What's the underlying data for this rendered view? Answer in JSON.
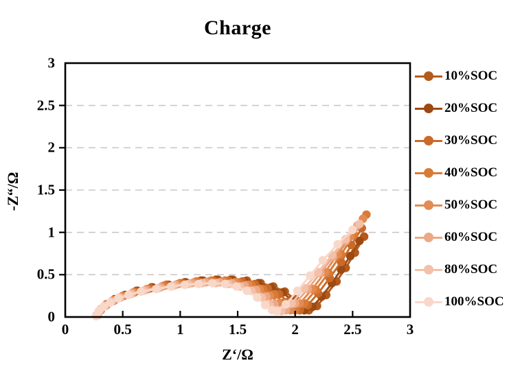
{
  "chart_data": {
    "type": "line",
    "title": "Charge",
    "xlabel": "Z‘/Ω",
    "ylabel": "-Z“/Ω",
    "xlim": [
      0,
      3
    ],
    "ylim": [
      0,
      3
    ],
    "xticks": [
      0,
      0.5,
      1,
      1.5,
      2,
      2.5,
      3
    ],
    "yticks": [
      0,
      0.5,
      1,
      1.5,
      2,
      2.5,
      3
    ],
    "xtick_labels": [
      "0",
      "0.5",
      "1",
      "1.5",
      "2",
      "2.5",
      "3"
    ],
    "ytick_labels": [
      "0",
      "0.5",
      "1",
      "1.5",
      "2",
      "2.5",
      "3"
    ],
    "grid": "horizontal-dashed",
    "grid_color": "#c9c9c9",
    "border_color": "#000000",
    "legend_position": "right",
    "series": [
      {
        "name": "10%SOC",
        "color": "#b45a1d",
        "points": [
          [
            0.28,
            0.02
          ],
          [
            0.31,
            0.09
          ],
          [
            0.36,
            0.15
          ],
          [
            0.43,
            0.21
          ],
          [
            0.52,
            0.26
          ],
          [
            0.63,
            0.31
          ],
          [
            0.76,
            0.35
          ],
          [
            0.9,
            0.38
          ],
          [
            1.05,
            0.41
          ],
          [
            1.2,
            0.43
          ],
          [
            1.33,
            0.44
          ],
          [
            1.46,
            0.44
          ],
          [
            1.58,
            0.43
          ],
          [
            1.7,
            0.4
          ],
          [
            1.81,
            0.36
          ],
          [
            1.91,
            0.3
          ],
          [
            2.0,
            0.21
          ],
          [
            2.07,
            0.12
          ],
          [
            2.12,
            0.08
          ],
          [
            2.19,
            0.13
          ],
          [
            2.27,
            0.26
          ],
          [
            2.36,
            0.42
          ],
          [
            2.44,
            0.58
          ],
          [
            2.52,
            0.76
          ],
          [
            2.6,
            0.95
          ]
        ]
      },
      {
        "name": "20%SOC",
        "color": "#9c4a12",
        "points": [
          [
            0.28,
            0.02
          ],
          [
            0.31,
            0.09
          ],
          [
            0.36,
            0.15
          ],
          [
            0.43,
            0.21
          ],
          [
            0.52,
            0.26
          ],
          [
            0.62,
            0.31
          ],
          [
            0.75,
            0.35
          ],
          [
            0.89,
            0.38
          ],
          [
            1.04,
            0.41
          ],
          [
            1.18,
            0.43
          ],
          [
            1.31,
            0.44
          ],
          [
            1.44,
            0.44
          ],
          [
            1.56,
            0.42
          ],
          [
            1.68,
            0.4
          ],
          [
            1.79,
            0.35
          ],
          [
            1.89,
            0.29
          ],
          [
            1.97,
            0.2
          ],
          [
            2.04,
            0.11
          ],
          [
            2.08,
            0.08
          ],
          [
            2.15,
            0.12
          ],
          [
            2.23,
            0.24
          ],
          [
            2.32,
            0.4
          ],
          [
            2.4,
            0.56
          ],
          [
            2.48,
            0.72
          ],
          [
            2.56,
            0.9
          ]
        ]
      },
      {
        "name": "30%SOC",
        "color": "#c96a2a",
        "points": [
          [
            0.28,
            0.02
          ],
          [
            0.31,
            0.09
          ],
          [
            0.36,
            0.15
          ],
          [
            0.43,
            0.2
          ],
          [
            0.51,
            0.25
          ],
          [
            0.61,
            0.3
          ],
          [
            0.74,
            0.34
          ],
          [
            0.88,
            0.38
          ],
          [
            1.02,
            0.4
          ],
          [
            1.16,
            0.42
          ],
          [
            1.29,
            0.43
          ],
          [
            1.42,
            0.43
          ],
          [
            1.54,
            0.42
          ],
          [
            1.65,
            0.39
          ],
          [
            1.76,
            0.34
          ],
          [
            1.86,
            0.27
          ],
          [
            1.94,
            0.18
          ],
          [
            2.0,
            0.1
          ],
          [
            2.04,
            0.08
          ],
          [
            2.11,
            0.14
          ],
          [
            2.2,
            0.28
          ],
          [
            2.3,
            0.46
          ],
          [
            2.4,
            0.65
          ],
          [
            2.49,
            0.85
          ],
          [
            2.58,
            1.05
          ]
        ]
      },
      {
        "name": "40%SOC",
        "color": "#d97a35",
        "points": [
          [
            0.28,
            0.02
          ],
          [
            0.31,
            0.08
          ],
          [
            0.36,
            0.14
          ],
          [
            0.42,
            0.2
          ],
          [
            0.5,
            0.25
          ],
          [
            0.6,
            0.29
          ],
          [
            0.72,
            0.33
          ],
          [
            0.86,
            0.37
          ],
          [
            1.0,
            0.4
          ],
          [
            1.14,
            0.42
          ],
          [
            1.27,
            0.43
          ],
          [
            1.39,
            0.43
          ],
          [
            1.51,
            0.41
          ],
          [
            1.62,
            0.38
          ],
          [
            1.72,
            0.33
          ],
          [
            1.82,
            0.26
          ],
          [
            1.9,
            0.17
          ],
          [
            1.96,
            0.1
          ],
          [
            2.0,
            0.08
          ],
          [
            2.08,
            0.16
          ],
          [
            2.18,
            0.32
          ],
          [
            2.29,
            0.52
          ],
          [
            2.4,
            0.74
          ],
          [
            2.51,
            0.97
          ],
          [
            2.62,
            1.21
          ]
        ]
      },
      {
        "name": "50%SOC",
        "color": "#e28b52",
        "points": [
          [
            0.28,
            0.02
          ],
          [
            0.31,
            0.08
          ],
          [
            0.35,
            0.14
          ],
          [
            0.42,
            0.19
          ],
          [
            0.49,
            0.24
          ],
          [
            0.59,
            0.29
          ],
          [
            0.71,
            0.33
          ],
          [
            0.84,
            0.36
          ],
          [
            0.98,
            0.39
          ],
          [
            1.12,
            0.41
          ],
          [
            1.25,
            0.42
          ],
          [
            1.37,
            0.42
          ],
          [
            1.48,
            0.41
          ],
          [
            1.59,
            0.38
          ],
          [
            1.69,
            0.33
          ],
          [
            1.78,
            0.25
          ],
          [
            1.86,
            0.16
          ],
          [
            1.92,
            0.09
          ],
          [
            1.96,
            0.08
          ],
          [
            2.04,
            0.16
          ],
          [
            2.15,
            0.33
          ],
          [
            2.26,
            0.53
          ],
          [
            2.37,
            0.74
          ],
          [
            2.48,
            0.95
          ],
          [
            2.59,
            1.16
          ]
        ]
      },
      {
        "name": "60%SOC",
        "color": "#eda886",
        "points": [
          [
            0.28,
            0.02
          ],
          [
            0.3,
            0.08
          ],
          [
            0.35,
            0.13
          ],
          [
            0.41,
            0.19
          ],
          [
            0.48,
            0.23
          ],
          [
            0.58,
            0.28
          ],
          [
            0.7,
            0.32
          ],
          [
            0.83,
            0.35
          ],
          [
            0.96,
            0.38
          ],
          [
            1.1,
            0.4
          ],
          [
            1.22,
            0.41
          ],
          [
            1.34,
            0.41
          ],
          [
            1.45,
            0.4
          ],
          [
            1.56,
            0.37
          ],
          [
            1.66,
            0.32
          ],
          [
            1.75,
            0.24
          ],
          [
            1.82,
            0.15
          ],
          [
            1.88,
            0.09
          ],
          [
            1.92,
            0.08
          ],
          [
            2.0,
            0.16
          ],
          [
            2.11,
            0.33
          ],
          [
            2.22,
            0.52
          ],
          [
            2.33,
            0.71
          ],
          [
            2.44,
            0.9
          ],
          [
            2.54,
            1.08
          ]
        ]
      },
      {
        "name": "80%SOC",
        "color": "#f3c0a8",
        "points": [
          [
            0.27,
            0.02
          ],
          [
            0.3,
            0.08
          ],
          [
            0.34,
            0.13
          ],
          [
            0.4,
            0.18
          ],
          [
            0.47,
            0.23
          ],
          [
            0.57,
            0.27
          ],
          [
            0.68,
            0.31
          ],
          [
            0.81,
            0.34
          ],
          [
            0.94,
            0.37
          ],
          [
            1.07,
            0.39
          ],
          [
            1.19,
            0.4
          ],
          [
            1.31,
            0.4
          ],
          [
            1.42,
            0.39
          ],
          [
            1.52,
            0.36
          ],
          [
            1.62,
            0.31
          ],
          [
            1.71,
            0.23
          ],
          [
            1.78,
            0.14
          ],
          [
            1.84,
            0.08
          ],
          [
            1.88,
            0.07
          ],
          [
            1.97,
            0.16
          ],
          [
            2.08,
            0.34
          ],
          [
            2.2,
            0.53
          ],
          [
            2.32,
            0.73
          ],
          [
            2.44,
            0.92
          ],
          [
            2.56,
            1.1
          ]
        ]
      },
      {
        "name": "100%SOC",
        "color": "#f9d8ca",
        "points": [
          [
            0.27,
            0.01
          ],
          [
            0.29,
            0.07
          ],
          [
            0.33,
            0.12
          ],
          [
            0.39,
            0.17
          ],
          [
            0.46,
            0.22
          ],
          [
            0.55,
            0.26
          ],
          [
            0.66,
            0.3
          ],
          [
            0.79,
            0.33
          ],
          [
            0.92,
            0.36
          ],
          [
            1.04,
            0.38
          ],
          [
            1.16,
            0.39
          ],
          [
            1.28,
            0.4
          ],
          [
            1.39,
            0.39
          ],
          [
            1.49,
            0.36
          ],
          [
            1.58,
            0.31
          ],
          [
            1.67,
            0.23
          ],
          [
            1.74,
            0.14
          ],
          [
            1.8,
            0.08
          ],
          [
            1.84,
            0.07
          ],
          [
            1.92,
            0.15
          ],
          [
            2.02,
            0.31
          ],
          [
            2.13,
            0.49
          ],
          [
            2.24,
            0.67
          ],
          [
            2.37,
            0.86
          ],
          [
            2.5,
            1.03
          ]
        ]
      }
    ]
  }
}
